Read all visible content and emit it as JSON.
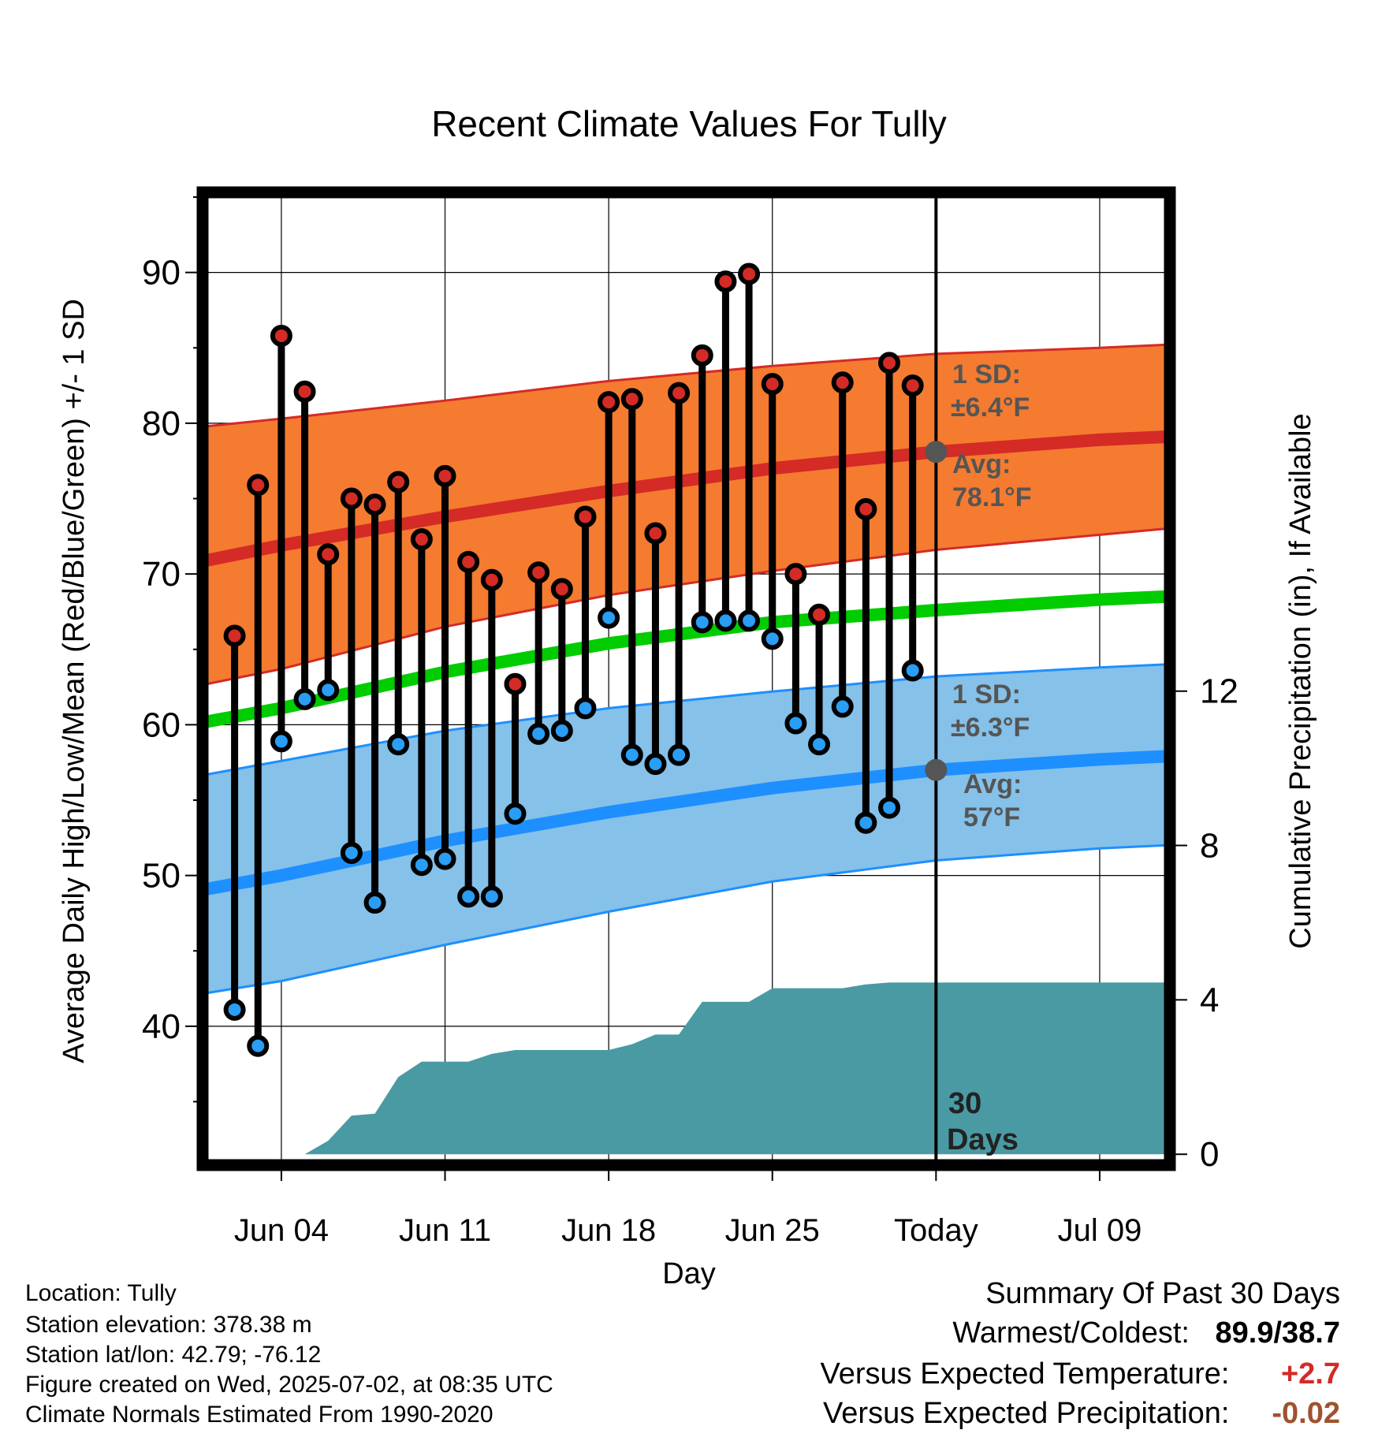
{
  "chart_data": {
    "type": "line",
    "title": "Recent Climate Values For Tully",
    "xlabel": "Day",
    "ylabel": "Average Daily High/Low/Mean (Red/Blue/Green) +/- 1 SD",
    "y2label": "Cumulative Precipitation (in), If Available",
    "x_tick_labels": [
      "Jun 04",
      "Jun 11",
      "Jun 18",
      "Jun 25",
      "Today",
      "Jul 09"
    ],
    "x_tick_days": [
      4,
      11,
      18,
      25,
      32,
      39
    ],
    "xlim_days": [
      0.8,
      41.8
    ],
    "ylim": [
      31,
      95
    ],
    "y_ticks": [
      40,
      50,
      60,
      70,
      80,
      90
    ],
    "y2lim": [
      -0.2,
      24.8
    ],
    "y2_ticks": [
      0,
      4,
      8,
      12
    ],
    "grid": true,
    "today_day": 32,
    "today_label": [
      "30",
      "Days"
    ],
    "daily_days": [
      2,
      3,
      4,
      5,
      6,
      7,
      8,
      9,
      10,
      11,
      12,
      13,
      14,
      15,
      16,
      17,
      18,
      19,
      20,
      21,
      22,
      23,
      24,
      25,
      26,
      27,
      28,
      29,
      30,
      31
    ],
    "daily_high": [
      65.9,
      75.9,
      85.8,
      82.1,
      71.3,
      75.0,
      74.6,
      76.1,
      72.3,
      76.5,
      70.8,
      69.6,
      62.7,
      70.1,
      69.0,
      73.8,
      81.4,
      81.6,
      72.7,
      82.0,
      84.5,
      89.4,
      89.9,
      82.6,
      70.0,
      67.3,
      82.7,
      74.3,
      84.0,
      82.5
    ],
    "daily_low": [
      41.1,
      38.7,
      58.9,
      61.7,
      62.3,
      51.5,
      48.2,
      58.7,
      50.7,
      51.1,
      48.6,
      48.6,
      54.1,
      59.4,
      59.6,
      61.1,
      67.1,
      58.0,
      57.4,
      58.0,
      66.8,
      66.9,
      66.9,
      65.7,
      60.1,
      58.7,
      61.2,
      53.5,
      54.5,
      63.6
    ],
    "normals": {
      "days": [
        0.8,
        4,
        11,
        18,
        25,
        32,
        39,
        41.8
      ],
      "high_avg": [
        70.9,
        71.9,
        73.8,
        75.5,
        77.0,
        78.1,
        78.9,
        79.1
      ],
      "high_upper": [
        79.8,
        80.3,
        81.5,
        82.8,
        83.8,
        84.6,
        85.0,
        85.2
      ],
      "high_lower": [
        62.7,
        63.7,
        66.5,
        68.6,
        70.2,
        71.6,
        72.6,
        73.0
      ],
      "mean_avg": [
        60.2,
        61.1,
        63.5,
        65.4,
        66.8,
        67.6,
        68.3,
        68.5
      ],
      "low_avg": [
        49.1,
        50.0,
        52.3,
        54.2,
        55.8,
        57.0,
        57.7,
        57.9
      ],
      "low_upper": [
        56.7,
        57.6,
        59.6,
        61.1,
        62.2,
        63.2,
        63.8,
        64.0
      ],
      "low_lower": [
        42.2,
        43.0,
        45.4,
        47.6,
        49.6,
        51.0,
        51.8,
        52.0
      ]
    },
    "precip": {
      "days": [
        0.8,
        4,
        5,
        6,
        7,
        8,
        9,
        10,
        11,
        12,
        13,
        14,
        15,
        16,
        17,
        18,
        19,
        20,
        21,
        22,
        23,
        24,
        25,
        26,
        27,
        28,
        29,
        30,
        31,
        32,
        41.8
      ],
      "cumulative": [
        0,
        0,
        0,
        0.35,
        1.0,
        1.05,
        2.0,
        2.4,
        2.4,
        2.4,
        2.6,
        2.7,
        2.7,
        2.7,
        2.7,
        2.7,
        2.85,
        3.1,
        3.1,
        3.95,
        3.95,
        3.95,
        4.3,
        4.3,
        4.3,
        4.3,
        4.4,
        4.45,
        4.45,
        4.45,
        4.45
      ]
    },
    "annotations": {
      "high_sd": [
        "1 SD:",
        "±6.4°F"
      ],
      "high_avg": [
        "Avg:",
        "78.1°F"
      ],
      "low_sd": [
        "1 SD:",
        "±6.3°F"
      ],
      "low_avg": [
        "Avg:",
        "57°F"
      ],
      "today_high_avg": 78.1,
      "today_low_avg": 57.0
    },
    "colors": {
      "high_band": "#f47b30",
      "high_line": "#d42b26",
      "low_band": "#85c1e9",
      "low_line": "#1e8fff",
      "mean_line": "#00cc00",
      "precip": "#4a9aa3",
      "high_dot": "#d42b26",
      "low_dot": "#2a9df4",
      "annotation": "#555555"
    }
  },
  "info": {
    "location": "Location: Tully",
    "elevation": "Station elevation: 378.38 m",
    "latlon": "Station lat/lon: 42.79; -76.12",
    "created": "Figure created on Wed, 2025-07-02, at 08:35 UTC",
    "normals": "Climate Normals Estimated From 1990-2020"
  },
  "summary": {
    "title": "Summary Of Past 30 Days",
    "warmest_label": "Warmest/Coldest:",
    "warmest_value": "89.9/38.7",
    "temp_label": "Versus Expected Temperature:",
    "temp_value": "+2.7",
    "temp_color": "#d42b26",
    "precip_label": "Versus Expected Precipitation:",
    "precip_value": "-0.02",
    "precip_color": "#a0522d"
  }
}
